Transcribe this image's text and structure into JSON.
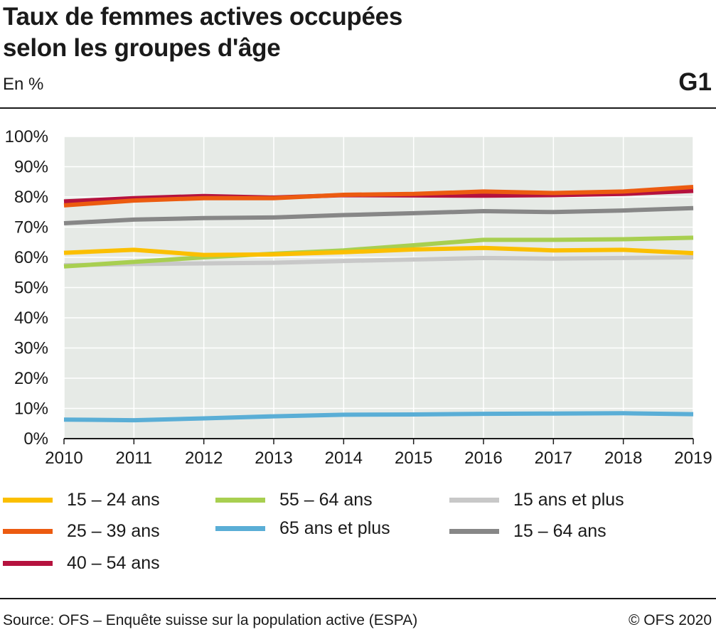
{
  "header": {
    "title_line1": "Taux de femmes actives occupées",
    "title_line2": "selon les groupes d'âge",
    "unit": "En %",
    "graphic_id": "G1"
  },
  "footer": {
    "source": "Source: OFS – Enquête suisse sur la population active (ESPA)",
    "copyright": "© OFS 2020"
  },
  "chart_data": {
    "type": "line",
    "title": "Taux de femmes actives occupées selon les groupes d'âge",
    "ylabel": "En %",
    "x": [
      2010,
      2011,
      2012,
      2013,
      2014,
      2015,
      2016,
      2017,
      2018,
      2019
    ],
    "ylim": [
      0,
      100
    ],
    "yticks": [
      0,
      10,
      20,
      30,
      40,
      50,
      60,
      70,
      80,
      90,
      100
    ],
    "ytick_labels": [
      "0%",
      "10%",
      "20%",
      "30%",
      "40%",
      "50%",
      "60%",
      "70%",
      "80%",
      "90%",
      "100%"
    ],
    "grid": true,
    "legend_position": "bottom",
    "series": [
      {
        "name": "15 ans et plus",
        "color": "#c8c8c8",
        "values": [
          57.4,
          57.8,
          58.0,
          58.2,
          58.8,
          59.3,
          59.8,
          59.6,
          59.8,
          60.0
        ]
      },
      {
        "name": "15 – 64 ans",
        "color": "#878787",
        "values": [
          71.3,
          72.5,
          73.0,
          73.2,
          74.0,
          74.6,
          75.3,
          75.0,
          75.5,
          76.3
        ]
      },
      {
        "name": "65 ans et plus",
        "color": "#5aaed6",
        "values": [
          6.3,
          6.1,
          6.7,
          7.4,
          7.9,
          8.0,
          8.2,
          8.3,
          8.4,
          8.1
        ]
      },
      {
        "name": "55 – 64 ans",
        "color": "#a8cf50",
        "values": [
          57.0,
          58.5,
          60.0,
          61.2,
          62.3,
          64.0,
          65.8,
          65.8,
          66.0,
          66.5
        ]
      },
      {
        "name": "15 – 24 ans",
        "color": "#fbbf00",
        "values": [
          61.5,
          62.5,
          60.8,
          61.0,
          61.7,
          62.6,
          63.1,
          62.3,
          62.5,
          61.4
        ]
      },
      {
        "name": "40 – 54 ans",
        "color": "#b5123e",
        "values": [
          78.5,
          79.6,
          80.3,
          79.8,
          80.6,
          80.5,
          80.4,
          80.6,
          81.0,
          82.0
        ]
      },
      {
        "name": "25 – 39 ans",
        "color": "#ec5b10",
        "values": [
          77.2,
          78.8,
          79.6,
          79.6,
          80.7,
          81.0,
          81.8,
          81.3,
          81.8,
          83.3
        ]
      }
    ]
  },
  "legend": {
    "items": [
      {
        "label": "15 – 24 ans",
        "color": "#fbbf00"
      },
      {
        "label": "25 – 39 ans",
        "color": "#ec5b10"
      },
      {
        "label": "40 – 54 ans",
        "color": "#b5123e"
      },
      {
        "label": "55 – 64 ans",
        "color": "#a8cf50"
      },
      {
        "label": "65 ans et plus",
        "color": "#5aaed6"
      },
      {
        "label": "15 ans et plus",
        "color": "#c8c8c8"
      },
      {
        "label": "15 – 64 ans",
        "color": "#878787"
      }
    ]
  }
}
